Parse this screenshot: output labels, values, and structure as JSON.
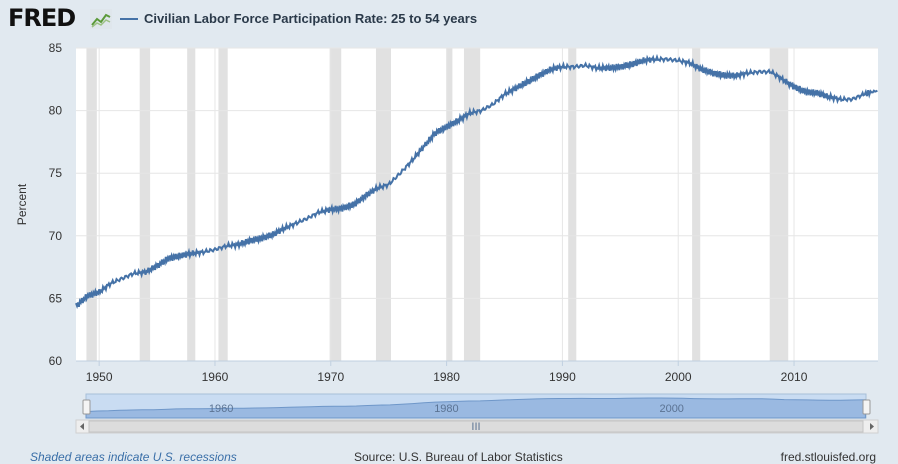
{
  "header": {
    "logo": "FRED",
    "legend_label": "Civilian Labor Force Participation Rate: 25 to 54 years"
  },
  "footer": {
    "left": "Shaded areas indicate U.S. recessions",
    "source": "Source: U.S. Bureau of Labor Statistics",
    "site": "fred.stlouisfed.org"
  },
  "navigator": {
    "labels": [
      "1960",
      "1980",
      "2000"
    ],
    "scroll_grip": "III"
  },
  "colors": {
    "series": "#4572a7",
    "recession": "#e1e1e1",
    "background": "#e1e9f0"
  },
  "chart_data": {
    "type": "line",
    "title": "",
    "xlabel": "",
    "ylabel": "Percent",
    "xlim": [
      1948.0,
      2017.25
    ],
    "ylim": [
      60,
      85
    ],
    "yticks": [
      60,
      65,
      70,
      75,
      80,
      85
    ],
    "xticks": [
      1950,
      1960,
      1970,
      1980,
      1990,
      2000,
      2010
    ],
    "grid": true,
    "legend": "top-left",
    "recessions": [
      [
        1948.9,
        1949.8
      ],
      [
        1953.5,
        1954.4
      ],
      [
        1957.6,
        1958.3
      ],
      [
        1960.3,
        1961.1
      ],
      [
        1969.9,
        1970.9
      ],
      [
        1973.9,
        1975.2
      ],
      [
        1980.0,
        1980.5
      ],
      [
        1981.5,
        1982.9
      ],
      [
        1990.5,
        1991.2
      ],
      [
        2001.2,
        2001.9
      ],
      [
        2007.9,
        2009.5
      ]
    ],
    "series": [
      {
        "name": "Civilian Labor Force Participation Rate: 25 to 54 years",
        "x": [
          1948.0,
          1949,
          1950,
          1951,
          1952,
          1953,
          1954,
          1955,
          1956,
          1957,
          1958,
          1959,
          1960,
          1961,
          1962,
          1963,
          1964,
          1965,
          1966,
          1967,
          1968,
          1969,
          1970,
          1971,
          1972,
          1973,
          1974,
          1975,
          1976,
          1977,
          1978,
          1979,
          1980,
          1981,
          1982,
          1983,
          1984,
          1985,
          1986,
          1987,
          1988,
          1989,
          1990,
          1991,
          1992,
          1993,
          1994,
          1995,
          1996,
          1997,
          1998,
          1999,
          2000,
          2001,
          2002,
          2003,
          2004,
          2005,
          2006,
          2007,
          2008,
          2009,
          2010,
          2011,
          2012,
          2013,
          2014,
          2015,
          2016,
          2017.2
        ],
        "values": [
          64.4,
          65.2,
          65.5,
          66.2,
          66.6,
          67.0,
          67.1,
          67.6,
          68.2,
          68.4,
          68.6,
          68.7,
          68.9,
          69.2,
          69.3,
          69.6,
          69.8,
          70.1,
          70.6,
          71.0,
          71.4,
          71.9,
          72.1,
          72.2,
          72.5,
          73.2,
          73.8,
          74.1,
          75.0,
          76.0,
          77.1,
          78.2,
          78.7,
          79.2,
          79.8,
          80.0,
          80.5,
          81.3,
          81.8,
          82.3,
          82.8,
          83.3,
          83.5,
          83.5,
          83.6,
          83.4,
          83.4,
          83.5,
          83.7,
          84.0,
          84.1,
          84.1,
          84.0,
          83.8,
          83.3,
          83.0,
          82.8,
          82.8,
          83.0,
          83.1,
          83.1,
          82.5,
          81.9,
          81.5,
          81.4,
          81.1,
          80.9,
          80.9,
          81.3,
          81.6
        ]
      }
    ]
  }
}
